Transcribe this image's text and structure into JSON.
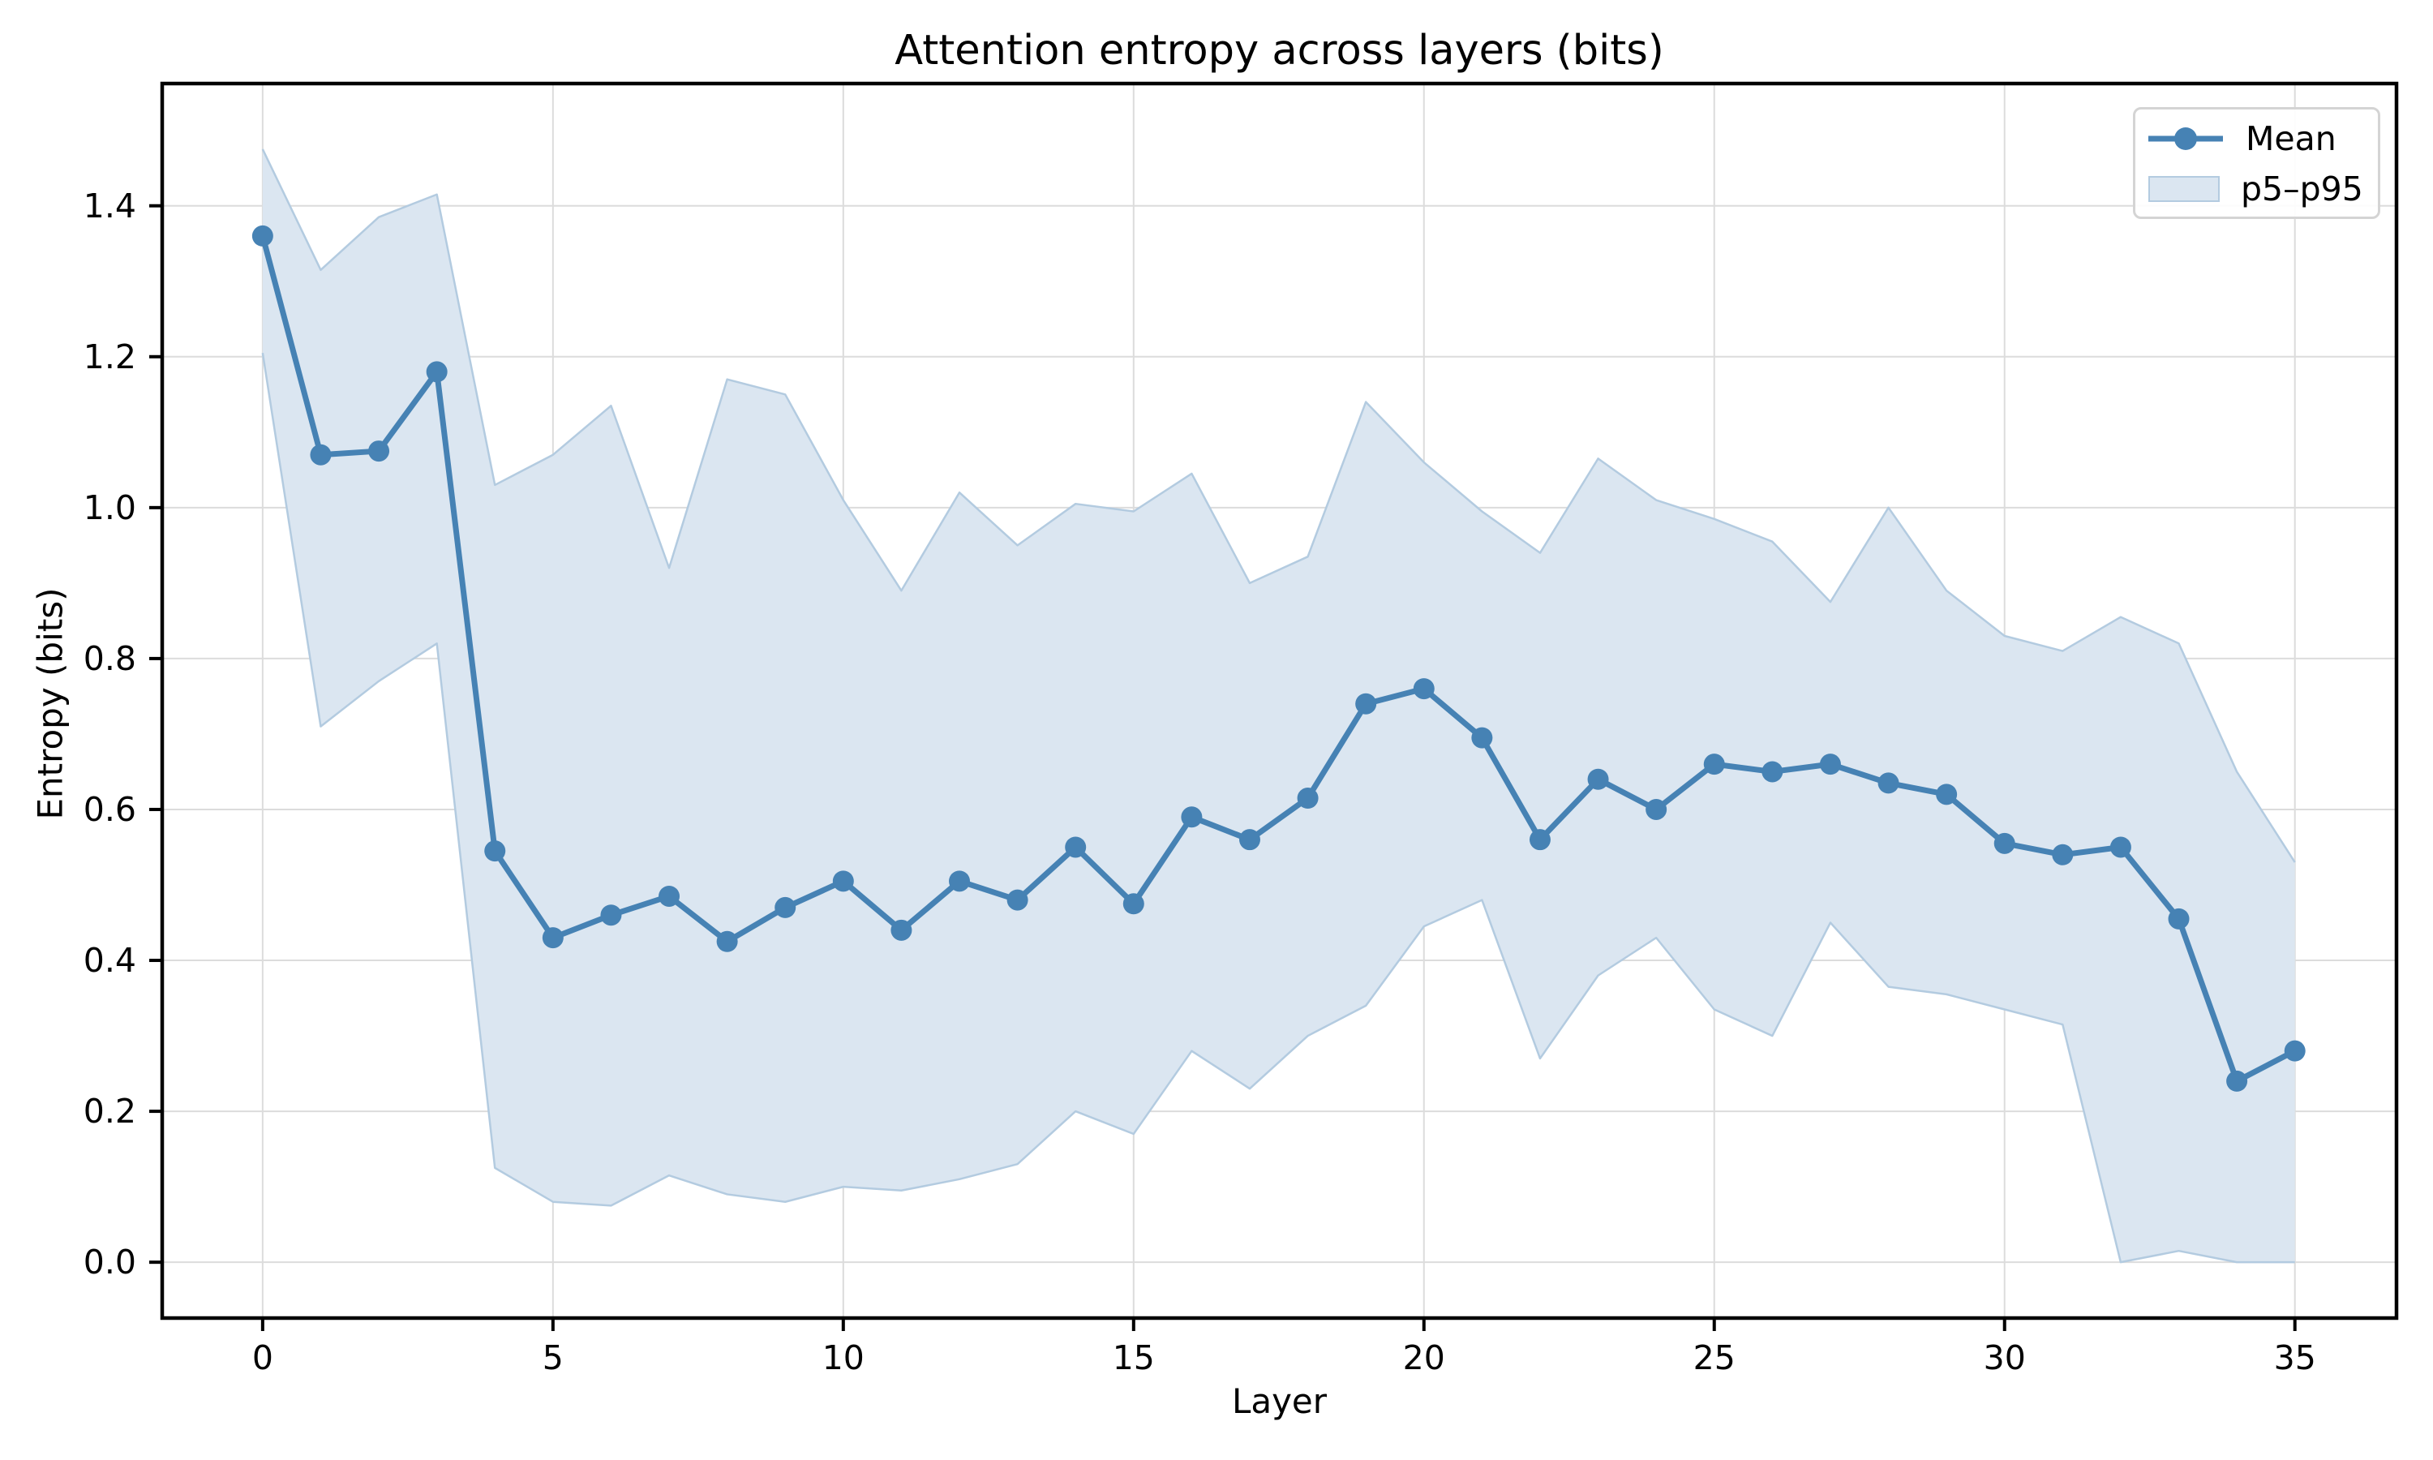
{
  "figure": {
    "title": "Attention entropy across layers (bits)",
    "xlabel": "Layer",
    "ylabel": "Entropy (bits)",
    "background": "#ffffff"
  },
  "legend": {
    "mean_label": "Mean",
    "band_label": "p5–p95",
    "position": "upper right"
  },
  "colors": {
    "line": "#4682b4",
    "marker": "#4682b4",
    "band_fill": "#dbe6f1",
    "band_edge": "#b3cbe0",
    "grid": "#dcdcdc",
    "spine": "#000000",
    "text": "#000000"
  },
  "chart_data": {
    "type": "line",
    "title": "Attention entropy across layers (bits)",
    "xlabel": "Layer",
    "ylabel": "Entropy (bits)",
    "x": [
      0,
      1,
      2,
      3,
      4,
      5,
      6,
      7,
      8,
      9,
      10,
      11,
      12,
      13,
      14,
      15,
      16,
      17,
      18,
      19,
      20,
      21,
      22,
      23,
      24,
      25,
      26,
      27,
      28,
      29,
      30,
      31,
      32,
      33,
      34,
      35
    ],
    "series": [
      {
        "name": "Mean",
        "style": "line+markers",
        "values": [
          1.36,
          1.07,
          1.075,
          1.18,
          0.545,
          0.43,
          0.46,
          0.485,
          0.425,
          0.47,
          0.505,
          0.44,
          0.505,
          0.48,
          0.55,
          0.475,
          0.59,
          0.56,
          0.615,
          0.74,
          0.76,
          0.695,
          0.56,
          0.64,
          0.6,
          0.66,
          0.65,
          0.66,
          0.635,
          0.62,
          0.555,
          0.54,
          0.55,
          0.455,
          0.24,
          0.28
        ]
      },
      {
        "name": "p95 (band upper)",
        "style": "band-upper",
        "values": [
          1.475,
          1.315,
          1.385,
          1.415,
          1.03,
          1.07,
          1.135,
          0.92,
          1.17,
          1.15,
          1.01,
          0.89,
          1.02,
          0.95,
          1.005,
          0.995,
          1.045,
          0.9,
          0.935,
          1.14,
          1.06,
          0.995,
          0.94,
          1.065,
          1.01,
          0.985,
          0.955,
          0.875,
          1.0,
          0.89,
          0.83,
          0.81,
          0.855,
          0.82,
          0.65,
          0.53
        ]
      },
      {
        "name": "p5 (band lower)",
        "style": "band-lower",
        "values": [
          1.205,
          0.71,
          0.77,
          0.82,
          0.125,
          0.08,
          0.075,
          0.115,
          0.09,
          0.08,
          0.1,
          0.095,
          0.11,
          0.13,
          0.2,
          0.17,
          0.28,
          0.23,
          0.3,
          0.34,
          0.445,
          0.48,
          0.27,
          0.38,
          0.43,
          0.335,
          0.3,
          0.45,
          0.365,
          0.355,
          0.335,
          0.315,
          0.0,
          0.015,
          0.0,
          0.0
        ]
      }
    ],
    "x_ticks": [
      0,
      5,
      10,
      15,
      20,
      25,
      30,
      35
    ],
    "y_ticks": [
      0.0,
      0.2,
      0.4,
      0.6,
      0.8,
      1.0,
      1.2,
      1.4
    ],
    "xlim": [
      -1.73,
      36.75
    ],
    "ylim": [
      -0.074,
      1.562
    ],
    "grid": true,
    "legend_position": "upper right"
  }
}
